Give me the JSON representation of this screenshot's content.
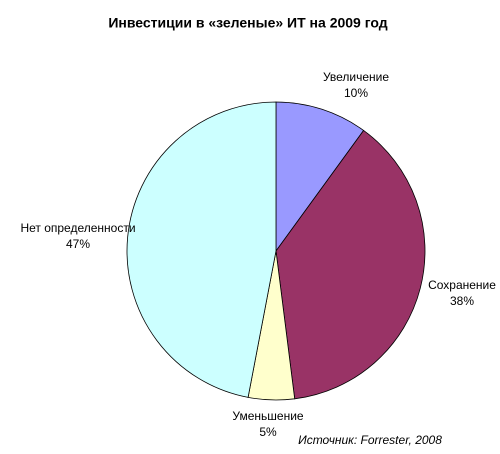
{
  "chart_data": {
    "type": "pie",
    "title": "Инвестиции в «зеленые» ИТ на 2009 год",
    "categories": [
      "Увеличение",
      "Сохранение",
      "Уменьшение",
      "Нет определенности"
    ],
    "values": [
      10,
      38,
      5,
      47
    ],
    "value_labels": [
      "10%",
      "38%",
      "5%",
      "47%"
    ],
    "colors": [
      "#9999ff",
      "#993366",
      "#ffffcc",
      "#ccffff"
    ],
    "annotation": "Источник: Forrester, 2008"
  }
}
